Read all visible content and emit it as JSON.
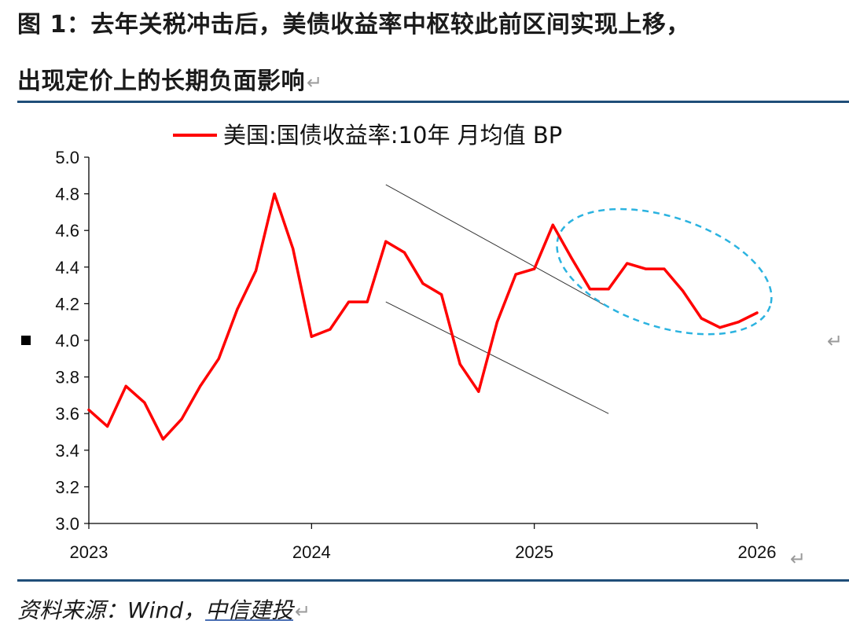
{
  "title": {
    "line1": "图 1：去年关税冲击后，美债收益率中枢较此前区间实现上移，",
    "line2": "出现定价上的长期负面影响",
    "return_mark": "↵"
  },
  "source": {
    "prefix": "资料来源：Wind，",
    "org": "中信建投"
  },
  "colors": {
    "series": "#ff0000",
    "channel": "#333333",
    "ellipse": "#2bb3e0",
    "rule": "#1f4e79"
  },
  "chart_data": {
    "type": "line",
    "legend_label": "美国:国债收益率:10年 月均值 BP",
    "legend_position": "top",
    "y_tick_labels": [
      "5.0",
      "4.8",
      "4.6",
      "4.4",
      "4.2",
      "4.0",
      "3.8",
      "3.6",
      "3.4",
      "3.2",
      "3.0"
    ],
    "x_tick_labels": [
      "2023",
      "2024",
      "2025",
      "2026"
    ],
    "xlim": [
      "2023-01",
      "2026-01"
    ],
    "ylim": [
      3.0,
      5.0
    ],
    "grid": false,
    "series": [
      {
        "name": "美国:国债收益率:10年 月均值 BP",
        "x": [
          "2023-01",
          "2023-02",
          "2023-03",
          "2023-04",
          "2023-05",
          "2023-06",
          "2023-07",
          "2023-08",
          "2023-09",
          "2023-10",
          "2023-11",
          "2023-12",
          "2024-01",
          "2024-02",
          "2024-03",
          "2024-04",
          "2024-05",
          "2024-06",
          "2024-07",
          "2024-08",
          "2024-09",
          "2024-10",
          "2024-11",
          "2024-12",
          "2025-01",
          "2025-02",
          "2025-03",
          "2025-04",
          "2025-05",
          "2025-06",
          "2025-07",
          "2025-08",
          "2025-09",
          "2025-10",
          "2025-11",
          "2025-12",
          "2026-01"
        ],
        "values": [
          3.62,
          3.53,
          3.75,
          3.66,
          3.46,
          3.57,
          3.75,
          3.9,
          4.17,
          4.38,
          4.8,
          4.5,
          4.02,
          4.06,
          4.21,
          4.21,
          4.54,
          4.48,
          4.31,
          4.25,
          3.87,
          3.72,
          4.1,
          4.36,
          4.39,
          4.63,
          4.45,
          4.28,
          4.28,
          4.42,
          4.39,
          4.39,
          4.27,
          4.12,
          4.07,
          4.1,
          4.15
        ]
      }
    ],
    "annotations": {
      "channel_upper": {
        "x": [
          "2024-05",
          "2025-05"
        ],
        "y": [
          4.85,
          4.18
        ]
      },
      "channel_lower": {
        "x": [
          "2024-05",
          "2025-05"
        ],
        "y": [
          4.21,
          3.6
        ]
      },
      "highlight_ellipse": {
        "x_center": "2025-08",
        "y_center": 4.375,
        "x_half_span_months": 6,
        "y_half_span": 0.3
      }
    }
  }
}
